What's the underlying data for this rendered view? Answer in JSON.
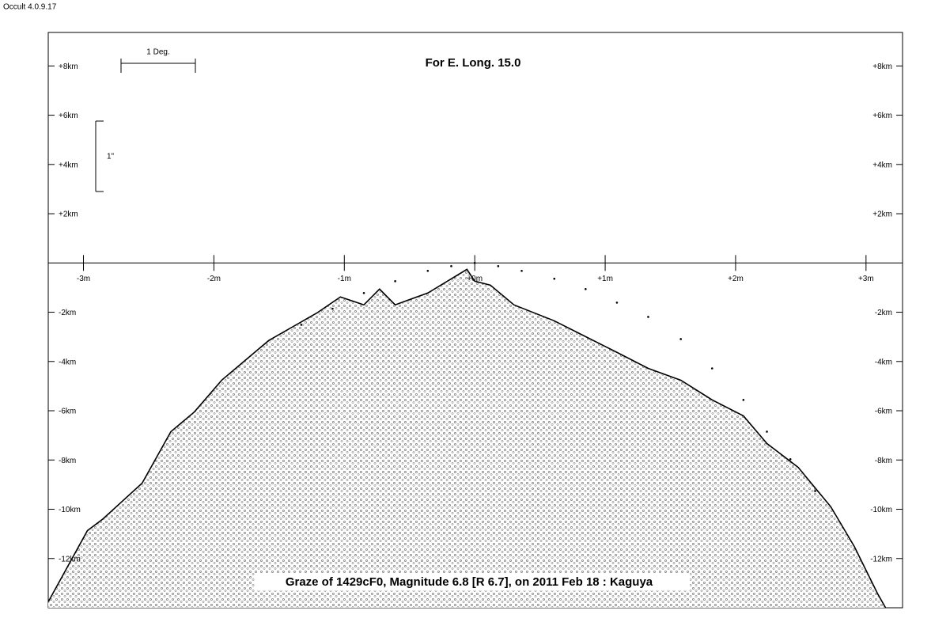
{
  "app_label": "Occult 4.0.9.17",
  "chart_data": {
    "type": "line",
    "title": "For E. Long. 15.0",
    "caption": "Graze of  1429cF0,  Magnitude 6.8 [R 6.7],  on 2011 Feb 18  :  Kaguya",
    "scale_x_label": "1 Deg.",
    "scale_y_label": "1\"",
    "xlim": [
      -3.27,
      3.28
    ],
    "ylim": [
      -14.0,
      9.36
    ],
    "xticks": [
      {
        "value": -3,
        "label": "-3m"
      },
      {
        "value": -2,
        "label": "-2m"
      },
      {
        "value": -1,
        "label": "-1m"
      },
      {
        "value": 0,
        "label": "+0m"
      },
      {
        "value": 1,
        "label": "+1m"
      },
      {
        "value": 2,
        "label": "+2m"
      },
      {
        "value": 3,
        "label": "+3m"
      }
    ],
    "yticks": [
      {
        "value": 8,
        "label": "+8km"
      },
      {
        "value": 6,
        "label": "+6km"
      },
      {
        "value": 4,
        "label": "+4km"
      },
      {
        "value": 2,
        "label": "+2km"
      },
      {
        "value": -2,
        "label": "-2km"
      },
      {
        "value": -4,
        "label": "-4km"
      },
      {
        "value": -6,
        "label": "-6km"
      },
      {
        "value": -8,
        "label": "-8km"
      },
      {
        "value": -10,
        "label": "-10km"
      },
      {
        "value": -12,
        "label": "-12km"
      }
    ],
    "series": [
      {
        "color": "#000000",
        "x": [
          -3.27,
          -2.97,
          -2.85,
          -2.55,
          -2.33,
          -2.15,
          -1.94,
          -1.58,
          -1.21,
          -1.03,
          -0.85,
          -0.73,
          -0.61,
          -0.36,
          -0.06,
          0,
          0.12,
          0.3,
          0.61,
          0.85,
          1.09,
          1.33,
          1.58,
          1.82,
          2.06,
          2.24,
          2.48,
          2.73,
          2.91,
          3.09,
          3.15
        ],
        "values": [
          -13.76,
          -10.87,
          -10.39,
          -8.94,
          -6.85,
          -6.05,
          -4.76,
          -3.15,
          -2.03,
          -1.38,
          -1.7,
          -1.06,
          -1.7,
          -1.22,
          -0.26,
          -0.74,
          -0.9,
          -1.7,
          -2.35,
          -2.99,
          -3.63,
          -4.28,
          -4.76,
          -5.56,
          -6.21,
          -7.33,
          -8.3,
          -9.9,
          -11.51,
          -13.44,
          -14.0
        ]
      },
      {
        "color": "#000000",
        "style": "dots",
        "x": [
          -1.33,
          -1.09,
          -0.85,
          -0.61,
          -0.36,
          -0.18,
          0,
          0.18,
          0.36,
          0.61,
          0.85,
          1.09,
          1.33,
          1.58,
          1.82,
          2.06,
          2.24,
          2.42,
          2.61
        ],
        "values": [
          -2.51,
          -1.86,
          -1.22,
          -0.74,
          -0.32,
          -0.13,
          0,
          -0.13,
          -0.32,
          -0.64,
          -1.06,
          -1.61,
          -2.19,
          -3.09,
          -4.28,
          -5.56,
          -6.85,
          -7.97,
          -9.26
        ]
      }
    ]
  }
}
